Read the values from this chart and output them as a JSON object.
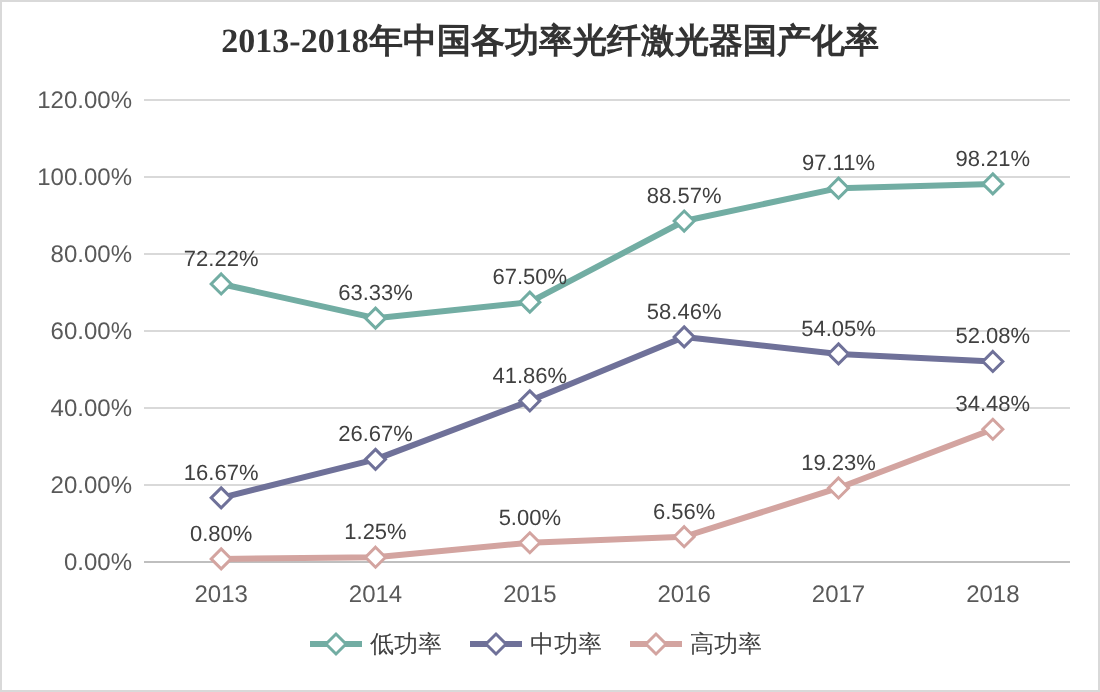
{
  "chart_data": {
    "type": "line",
    "title": "2013-2018年中国各功率光纤激光器国产化率",
    "categories": [
      "2013",
      "2014",
      "2015",
      "2016",
      "2017",
      "2018"
    ],
    "ylim": [
      0,
      120
    ],
    "yticks": [
      {
        "value": 0,
        "label": "0.00%"
      },
      {
        "value": 20,
        "label": "20.00%"
      },
      {
        "value": 40,
        "label": "40.00%"
      },
      {
        "value": 60,
        "label": "60.00%"
      },
      {
        "value": 80,
        "label": "80.00%"
      },
      {
        "value": 100,
        "label": "100.00%"
      },
      {
        "value": 120,
        "label": "120.00%"
      }
    ],
    "grid": "y",
    "legend": "bottom",
    "marker": "diamond",
    "line_style": "solid",
    "series": [
      {
        "name": "低功率",
        "color": "#72ada3",
        "values": [
          72.22,
          63.33,
          67.5,
          88.57,
          97.11,
          98.21
        ],
        "value_labels": [
          "72.22%",
          "63.33%",
          "67.50%",
          "88.57%",
          "97.11%",
          "98.21%"
        ]
      },
      {
        "name": "中功率",
        "color": "#6f7199",
        "values": [
          16.67,
          26.67,
          41.86,
          58.46,
          54.05,
          52.08
        ],
        "value_labels": [
          "16.67%",
          "26.67%",
          "41.86%",
          "58.46%",
          "54.05%",
          "52.08%"
        ]
      },
      {
        "name": "高功率",
        "color": "#d3a4a0",
        "values": [
          0.8,
          1.25,
          5,
          6.56,
          19.23,
          34.48
        ],
        "value_labels": [
          "0.80%",
          "1.25%",
          "5.00%",
          "6.56%",
          "19.23%",
          "34.48%"
        ]
      }
    ]
  }
}
